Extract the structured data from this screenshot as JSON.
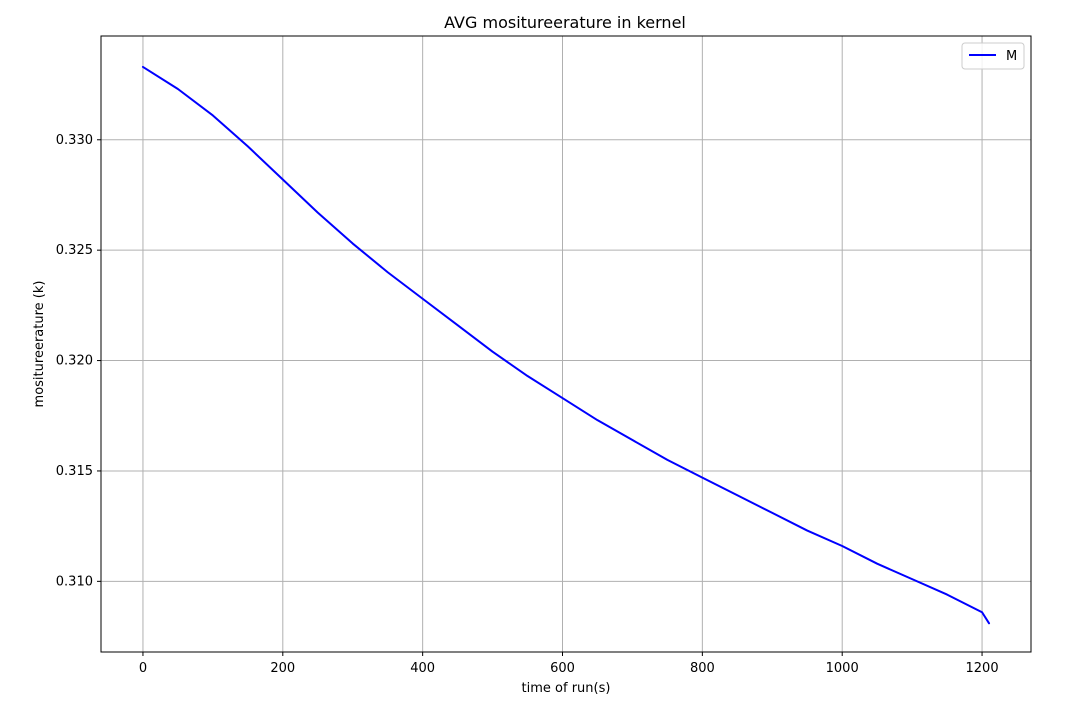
{
  "chart_data": {
    "type": "line",
    "title": "AVG mositureerature in kernel",
    "xlabel": "time of run(s)",
    "ylabel": "mositureerature (k)",
    "xlim": [
      -60,
      1270
    ],
    "ylim": [
      0.3068,
      0.3347
    ],
    "xticks": [
      0,
      200,
      400,
      600,
      800,
      1000,
      1200
    ],
    "xtick_labels": [
      "0",
      "200",
      "400",
      "600",
      "800",
      "1000",
      "1200"
    ],
    "yticks": [
      0.31,
      0.315,
      0.32,
      0.325,
      0.33
    ],
    "ytick_labels": [
      "0.310",
      "0.315",
      "0.320",
      "0.325",
      "0.330"
    ],
    "grid": true,
    "legend_position": "top-right",
    "series": [
      {
        "name": "M",
        "color": "#0000ff",
        "x": [
          0,
          50,
          100,
          150,
          200,
          250,
          300,
          350,
          400,
          450,
          500,
          550,
          600,
          650,
          700,
          750,
          800,
          850,
          900,
          950,
          1000,
          1050,
          1100,
          1150,
          1200,
          1210
        ],
        "y": [
          0.3333,
          0.3323,
          0.3311,
          0.3297,
          0.3282,
          0.3267,
          0.3253,
          0.324,
          0.3228,
          0.3216,
          0.3204,
          0.3193,
          0.3183,
          0.3173,
          0.3164,
          0.3155,
          0.3147,
          0.3139,
          0.3131,
          0.3123,
          0.3116,
          0.3108,
          0.3101,
          0.3094,
          0.3086,
          0.3081
        ]
      }
    ]
  }
}
